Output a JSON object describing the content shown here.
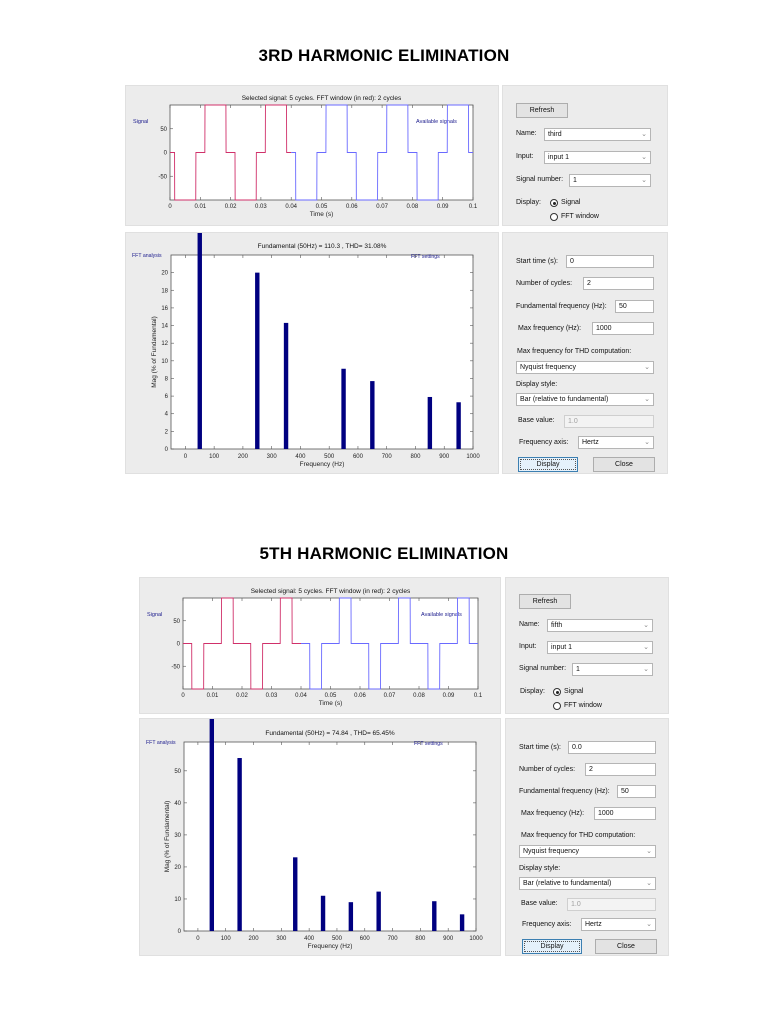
{
  "sections": [
    {
      "title": "3RD HARMONIC ELIMINATION",
      "signal_plot": {
        "title": "Selected signal: 5 cycles. FFT window (in red): 2 cycles",
        "left_label": "Signal",
        "legend_label": "Available signals",
        "xlabel": "Time (s)",
        "x_ticks": [
          "0",
          "0.01",
          "0.02",
          "0.03",
          "0.04",
          "0.05",
          "0.06",
          "0.07",
          "0.08",
          "0.09",
          "0.1"
        ],
        "y_ticks": [
          "50",
          "0",
          "-50"
        ]
      },
      "fft_plot": {
        "title": "Fundamental (50Hz) = 110.3 , THD= 31.08%",
        "left_label": "FFT analysis",
        "right_label": "FFT settings",
        "xlabel": "Frequency (Hz)",
        "ylabel": "Mag (% of Fundamental)",
        "x_ticks": [
          "0",
          "100",
          "200",
          "300",
          "400",
          "500",
          "600",
          "700",
          "800",
          "900",
          "1000"
        ],
        "y_ticks": [
          "0",
          "2",
          "4",
          "6",
          "8",
          "10",
          "12",
          "14",
          "16",
          "18",
          "20"
        ]
      },
      "signal_controls": {
        "refresh_label": "Refresh",
        "name_label": "Name:",
        "name_value": "third",
        "input_label": "Input:",
        "input_value": "input 1",
        "signal_number_label": "Signal number:",
        "signal_number_value": "1",
        "display_label": "Display:",
        "display_options": [
          "Signal",
          "FFT window"
        ],
        "display_selected": "Signal"
      },
      "fft_settings": {
        "start_time_label": "Start time (s):",
        "start_time_value": "0",
        "num_cycles_label": "Number of cycles:",
        "num_cycles_value": "2",
        "fund_freq_label": "Fundamental frequency (Hz):",
        "fund_freq_value": "50",
        "max_freq_label": "Max frequency (Hz):",
        "max_freq_value": "1000",
        "thd_max_label": "Max frequency for THD computation:",
        "thd_max_value": "Nyquist frequency",
        "display_style_label": "Display style:",
        "display_style_value": "Bar (relative to fundamental)",
        "base_value_label": "Base value:",
        "base_value_value": "1.0",
        "freq_axis_label": "Frequency axis:",
        "freq_axis_value": "Hertz",
        "display_button": "Display",
        "close_button": "Close"
      }
    },
    {
      "title": "5TH HARMONIC ELIMINATION",
      "signal_plot": {
        "title": "Selected signal: 5 cycles. FFT window (in red): 2 cycles",
        "left_label": "Signal",
        "legend_label": "Available signals",
        "xlabel": "Time (s)",
        "x_ticks": [
          "0",
          "0.01",
          "0.02",
          "0.03",
          "0.04",
          "0.05",
          "0.06",
          "0.07",
          "0.08",
          "0.09",
          "0.1"
        ],
        "y_ticks": [
          "50",
          "0",
          "-50"
        ]
      },
      "fft_plot": {
        "title": "Fundamental (50Hz) = 74.84 , THD= 65.45%",
        "left_label": "FFT analysis",
        "right_label": "FFT settings",
        "xlabel": "Frequency (Hz)",
        "ylabel": "Mag (% of Fundamental)",
        "x_ticks": [
          "0",
          "100",
          "200",
          "300",
          "400",
          "500",
          "600",
          "700",
          "800",
          "900",
          "1000"
        ],
        "y_ticks": [
          "0",
          "10",
          "20",
          "30",
          "40",
          "50"
        ]
      },
      "signal_controls": {
        "refresh_label": "Refresh",
        "name_label": "Name:",
        "name_value": "fifth",
        "input_label": "Input:",
        "input_value": "input 1",
        "signal_number_label": "Signal number:",
        "signal_number_value": "1",
        "display_label": "Display:",
        "display_options": [
          "Signal",
          "FFT window"
        ],
        "display_selected": "Signal"
      },
      "fft_settings": {
        "start_time_label": "Start time (s):",
        "start_time_value": "0.0",
        "num_cycles_label": "Number of cycles:",
        "num_cycles_value": "2",
        "fund_freq_label": "Fundamental frequency (Hz):",
        "fund_freq_value": "50",
        "max_freq_label": "Max frequency (Hz):",
        "max_freq_value": "1000",
        "thd_max_label": "Max frequency for THD computation:",
        "thd_max_value": "Nyquist frequency",
        "display_style_label": "Display style:",
        "display_style_value": "Bar (relative to fundamental)",
        "base_value_label": "Base value:",
        "base_value_value": "1.0",
        "freq_axis_label": "Frequency axis:",
        "freq_axis_value": "Hertz",
        "display_button": "Display",
        "close_button": "Close"
      }
    }
  ],
  "colors": {
    "bar": "#000080",
    "fft_window_trace": "#d0306a",
    "signal_trace": "#6a6aff",
    "panel_bg": "#ececec",
    "label_blue": "#1a1a8c"
  },
  "chart_data": [
    {
      "type": "line",
      "title": "Selected signal: 5 cycles. FFT window (in red): 2 cycles",
      "xlabel": "Time (s)",
      "ylabel": "",
      "xlim": [
        0,
        0.1
      ],
      "ylim": [
        -100,
        100
      ],
      "series": [
        {
          "name": "FFT window (red)",
          "x_range": [
            0,
            0.04
          ],
          "description": "3-level quasi-square wave, levels -100/0/+100, period 0.02 s; 0 for ~0.0015 s around zero crossings (3rd harmonic elimination)"
        },
        {
          "name": "Signal (blue)",
          "x_range": [
            0.04,
            0.1
          ],
          "description": "continuation of same 3-level waveform"
        }
      ]
    },
    {
      "type": "bar",
      "title": "Fundamental (50Hz) = 110.3 , THD= 31.08%",
      "xlabel": "Frequency (Hz)",
      "ylabel": "Mag (% of Fundamental)",
      "xlim": [
        -50,
        1000
      ],
      "ylim": [
        0,
        22
      ],
      "categories": [
        50,
        250,
        350,
        550,
        650,
        850,
        950
      ],
      "values": [
        100,
        20.0,
        14.3,
        9.1,
        7.7,
        5.9,
        5.3
      ]
    },
    {
      "type": "line",
      "title": "Selected signal: 5 cycles. FFT window (in red): 2 cycles",
      "xlabel": "Time (s)",
      "ylabel": "",
      "xlim": [
        0,
        0.1
      ],
      "ylim": [
        -100,
        100
      ],
      "series": [
        {
          "name": "FFT window (red)",
          "x_range": [
            0,
            0.04
          ],
          "description": "3-level quasi-square wave, levels -100/0/+100, period 0.02 s; 0 for ~0.003 s around zero crossings (5th harmonic elimination)"
        },
        {
          "name": "Signal (blue)",
          "x_range": [
            0.04,
            0.1
          ],
          "description": "continuation of same 3-level waveform"
        }
      ]
    },
    {
      "type": "bar",
      "title": "Fundamental (50Hz) = 74.84 , THD= 65.45%",
      "xlabel": "Frequency (Hz)",
      "ylabel": "Mag (% of Fundamental)",
      "xlim": [
        -50,
        1000
      ],
      "ylim": [
        0,
        59
      ],
      "categories": [
        50,
        150,
        350,
        450,
        550,
        650,
        850,
        950
      ],
      "values": [
        100,
        54,
        23,
        11,
        9,
        12.3,
        9.3,
        5.2
      ]
    }
  ]
}
